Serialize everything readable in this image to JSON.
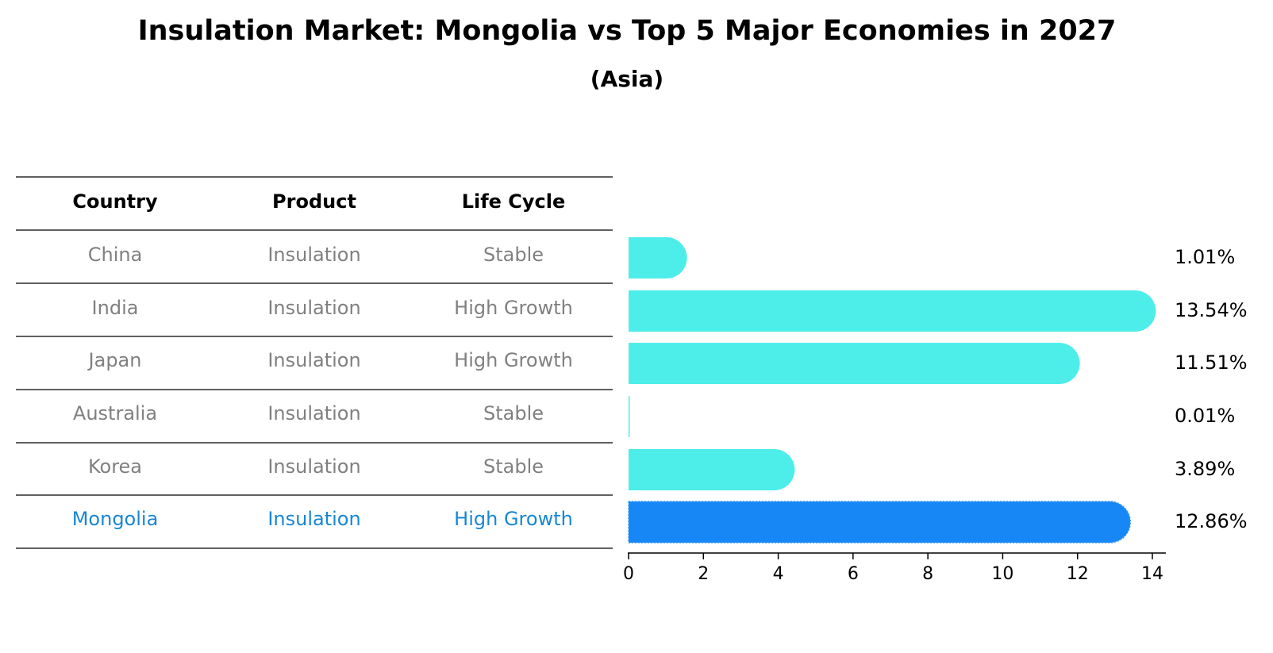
{
  "chart_data": {
    "type": "bar",
    "orientation": "horizontal",
    "title": "Insulation Market: Mongolia vs Top 5 Major Economies in 2027",
    "subtitle": "(Asia)",
    "table": {
      "headers": [
        "Country",
        "Product",
        "Life Cycle"
      ],
      "rows": [
        {
          "country": "China",
          "product": "Insulation",
          "life_cycle": "Stable",
          "highlight": false
        },
        {
          "country": "India",
          "product": "Insulation",
          "life_cycle": "High Growth",
          "highlight": false
        },
        {
          "country": "Japan",
          "product": "Insulation",
          "life_cycle": "High Growth",
          "highlight": false
        },
        {
          "country": "Australia",
          "product": "Insulation",
          "life_cycle": "Stable",
          "highlight": false
        },
        {
          "country": "Korea",
          "product": "Insulation",
          "life_cycle": "Stable",
          "highlight": false
        },
        {
          "country": "Mongolia",
          "product": "Insulation",
          "life_cycle": "High Growth",
          "highlight": true
        }
      ]
    },
    "categories": [
      "China",
      "India",
      "Japan",
      "Australia",
      "Korea",
      "Mongolia"
    ],
    "values": [
      1.01,
      13.54,
      11.51,
      0.01,
      3.89,
      12.86
    ],
    "value_labels": [
      "1.01%",
      "13.54%",
      "11.51%",
      "0.01%",
      "3.89%",
      "12.86%"
    ],
    "xlim": [
      0,
      14
    ],
    "xticks": [
      0,
      2,
      4,
      6,
      8,
      10,
      12,
      14
    ],
    "xlabel": "",
    "ylabel": "",
    "grid": false,
    "colors": {
      "bar": "#4DEDEA",
      "highlight_bar": "#1787F5",
      "highlight_text": "#1787D5",
      "muted_text": "#808080"
    }
  }
}
